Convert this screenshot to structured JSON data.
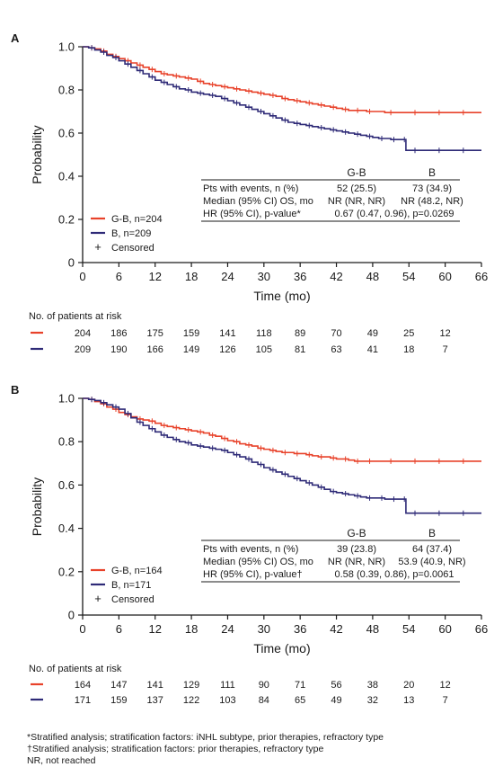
{
  "colors": {
    "gb": "#e8422a",
    "b": "#2e2a77",
    "axis": "#1a1a1a"
  },
  "chart_data": [
    {
      "panel_label": "A",
      "type": "line",
      "ylabel": "Probability",
      "xlabel": "Time (mo)",
      "xlim": [
        0,
        66
      ],
      "ylim": [
        0,
        1.0
      ],
      "x_ticks": [
        "0",
        "6",
        "12",
        "18",
        "24",
        "30",
        "36",
        "42",
        "48",
        "54",
        "60",
        "66"
      ],
      "y_ticks": [
        "0",
        "0.2",
        "0.4",
        "0.6",
        "0.8",
        "1.0"
      ],
      "legend": [
        {
          "label": "G-B, n=204",
          "series": "gb"
        },
        {
          "label": "B, n=209",
          "series": "b"
        },
        {
          "label": "Censored",
          "symbol": "+"
        }
      ],
      "series": [
        {
          "key": "gb",
          "name": "G-B, n=204",
          "x": [
            0,
            1,
            2,
            3,
            4,
            5,
            6,
            7,
            8,
            9,
            10,
            11,
            12,
            13,
            14,
            15,
            16,
            17,
            18,
            19,
            20,
            21,
            22,
            23,
            24,
            25,
            26,
            27,
            28,
            29,
            30,
            31,
            32,
            33,
            34,
            35,
            36,
            37,
            38,
            39,
            40,
            41,
            42,
            43,
            44,
            45,
            46,
            47,
            48,
            50,
            52,
            54,
            56,
            58,
            60,
            62,
            64,
            66
          ],
          "y": [
            1.0,
            0.995,
            0.99,
            0.98,
            0.965,
            0.955,
            0.945,
            0.935,
            0.925,
            0.915,
            0.905,
            0.895,
            0.885,
            0.875,
            0.87,
            0.865,
            0.86,
            0.855,
            0.85,
            0.84,
            0.83,
            0.825,
            0.82,
            0.815,
            0.81,
            0.805,
            0.8,
            0.795,
            0.79,
            0.785,
            0.78,
            0.775,
            0.77,
            0.76,
            0.755,
            0.75,
            0.745,
            0.74,
            0.735,
            0.73,
            0.725,
            0.72,
            0.715,
            0.71,
            0.705,
            0.705,
            0.705,
            0.7,
            0.7,
            0.695,
            0.695,
            0.695,
            0.695,
            0.695,
            0.695,
            0.695,
            0.695,
            0.695
          ]
        },
        {
          "key": "b",
          "name": "B, n=209",
          "x": [
            0,
            1,
            2,
            3,
            4,
            5,
            6,
            7,
            8,
            9,
            10,
            11,
            12,
            13,
            14,
            15,
            16,
            17,
            18,
            19,
            20,
            21,
            22,
            23,
            24,
            25,
            26,
            27,
            28,
            29,
            30,
            31,
            32,
            33,
            34,
            35,
            36,
            37,
            38,
            39,
            40,
            41,
            42,
            43,
            44,
            45,
            46,
            47,
            48,
            49,
            50,
            51,
            52,
            53,
            53.5,
            54,
            56,
            58,
            60,
            62,
            64,
            66
          ],
          "y": [
            1.0,
            0.995,
            0.985,
            0.975,
            0.96,
            0.95,
            0.935,
            0.92,
            0.905,
            0.89,
            0.875,
            0.86,
            0.845,
            0.835,
            0.825,
            0.815,
            0.805,
            0.8,
            0.79,
            0.785,
            0.78,
            0.775,
            0.77,
            0.76,
            0.75,
            0.74,
            0.73,
            0.72,
            0.71,
            0.7,
            0.69,
            0.68,
            0.67,
            0.66,
            0.65,
            0.645,
            0.64,
            0.635,
            0.63,
            0.625,
            0.62,
            0.615,
            0.61,
            0.605,
            0.6,
            0.595,
            0.59,
            0.585,
            0.58,
            0.575,
            0.575,
            0.57,
            0.57,
            0.57,
            0.52,
            0.52,
            0.52,
            0.52,
            0.52,
            0.52,
            0.52,
            0.52
          ]
        }
      ],
      "stats_table": {
        "columns": [
          "G-B",
          "B"
        ],
        "rows": [
          {
            "label": "Pts with events, n (%)",
            "gb": "52 (25.5)",
            "b": "73 (34.9)"
          },
          {
            "label": "Median (95% CI) OS, mo",
            "gb": "NR (NR, NR)",
            "b": "NR (48.2, NR)"
          },
          {
            "label": "HR (95% CI), p-value*",
            "merged": "0.67 (0.47, 0.96), p=0.0269"
          }
        ]
      },
      "risk_table": {
        "title": "No. of patients at risk",
        "x": [
          0,
          6,
          12,
          18,
          24,
          30,
          36,
          42,
          48,
          54,
          60
        ],
        "gb": [
          "204",
          "186",
          "175",
          "159",
          "141",
          "118",
          "89",
          "70",
          "49",
          "25",
          "12"
        ],
        "b": [
          "209",
          "190",
          "166",
          "149",
          "126",
          "105",
          "81",
          "63",
          "41",
          "18",
          "7"
        ]
      }
    },
    {
      "panel_label": "B",
      "type": "line",
      "ylabel": "Probability",
      "xlabel": "Time (mo)",
      "xlim": [
        0,
        66
      ],
      "ylim": [
        0,
        1.0
      ],
      "x_ticks": [
        "0",
        "6",
        "12",
        "18",
        "24",
        "30",
        "36",
        "42",
        "48",
        "54",
        "60",
        "66"
      ],
      "y_ticks": [
        "0",
        "0.2",
        "0.4",
        "0.6",
        "0.8",
        "1.0"
      ],
      "legend": [
        {
          "label": "G-B, n=164",
          "series": "gb"
        },
        {
          "label": "B, n=171",
          "series": "b"
        },
        {
          "label": "Censored",
          "symbol": "+"
        }
      ],
      "series": [
        {
          "key": "gb",
          "name": "G-B, n=164",
          "x": [
            0,
            1,
            2,
            3,
            4,
            5,
            6,
            7,
            8,
            9,
            10,
            11,
            12,
            13,
            14,
            15,
            16,
            17,
            18,
            19,
            20,
            21,
            22,
            23,
            24,
            25,
            26,
            27,
            28,
            29,
            30,
            31,
            32,
            33,
            34,
            35,
            36,
            37,
            38,
            39,
            40,
            41,
            42,
            43,
            44,
            45,
            46,
            47,
            48,
            50,
            52,
            54,
            56,
            58,
            60,
            62,
            64,
            66
          ],
          "y": [
            1.0,
            0.995,
            0.985,
            0.975,
            0.96,
            0.95,
            0.935,
            0.925,
            0.915,
            0.905,
            0.9,
            0.895,
            0.885,
            0.875,
            0.87,
            0.865,
            0.86,
            0.855,
            0.85,
            0.845,
            0.84,
            0.83,
            0.825,
            0.815,
            0.805,
            0.8,
            0.79,
            0.785,
            0.78,
            0.77,
            0.765,
            0.76,
            0.755,
            0.75,
            0.75,
            0.745,
            0.745,
            0.74,
            0.735,
            0.73,
            0.73,
            0.725,
            0.72,
            0.72,
            0.715,
            0.71,
            0.71,
            0.71,
            0.71,
            0.71,
            0.71,
            0.71,
            0.71,
            0.71,
            0.71,
            0.71,
            0.71,
            0.71
          ]
        },
        {
          "key": "b",
          "name": "B, n=171",
          "x": [
            0,
            1,
            2,
            3,
            4,
            5,
            6,
            7,
            8,
            9,
            10,
            11,
            12,
            13,
            14,
            15,
            16,
            17,
            18,
            19,
            20,
            21,
            22,
            23,
            24,
            25,
            26,
            27,
            28,
            29,
            30,
            31,
            32,
            33,
            34,
            35,
            36,
            37,
            38,
            39,
            40,
            41,
            42,
            43,
            44,
            45,
            46,
            47,
            48,
            49,
            50,
            51,
            52,
            53,
            53.5,
            54,
            56,
            58,
            60,
            62,
            64,
            66
          ],
          "y": [
            1.0,
            0.995,
            0.99,
            0.98,
            0.97,
            0.96,
            0.95,
            0.93,
            0.91,
            0.89,
            0.875,
            0.86,
            0.845,
            0.83,
            0.82,
            0.81,
            0.8,
            0.795,
            0.785,
            0.78,
            0.775,
            0.77,
            0.765,
            0.76,
            0.75,
            0.74,
            0.73,
            0.72,
            0.705,
            0.695,
            0.68,
            0.67,
            0.66,
            0.65,
            0.64,
            0.63,
            0.62,
            0.61,
            0.6,
            0.59,
            0.58,
            0.57,
            0.565,
            0.56,
            0.555,
            0.55,
            0.545,
            0.54,
            0.54,
            0.54,
            0.535,
            0.535,
            0.535,
            0.535,
            0.47,
            0.47,
            0.47,
            0.47,
            0.47,
            0.47,
            0.47,
            0.47
          ]
        }
      ],
      "stats_table": {
        "columns": [
          "G-B",
          "B"
        ],
        "rows": [
          {
            "label": "Pts with events, n (%)",
            "gb": "39 (23.8)",
            "b": "64 (37.4)"
          },
          {
            "label": "Median (95% CI) OS, mo",
            "gb": "NR (NR, NR)",
            "b": "53.9 (40.9, NR)"
          },
          {
            "label": "HR (95% CI), p-value†",
            "merged": "0.58 (0.39, 0.86), p=0.0061"
          }
        ]
      },
      "risk_table": {
        "title": "No. of patients at risk",
        "x": [
          0,
          6,
          12,
          18,
          24,
          30,
          36,
          42,
          48,
          54,
          60
        ],
        "gb": [
          "164",
          "147",
          "141",
          "129",
          "111",
          "90",
          "71",
          "56",
          "38",
          "20",
          "12"
        ],
        "b": [
          "171",
          "159",
          "137",
          "122",
          "103",
          "84",
          "65",
          "49",
          "32",
          "13",
          "7"
        ]
      }
    }
  ],
  "footnotes": [
    "*Stratified analysis; stratification factors: iNHL subtype, prior therapies, refractory type",
    "†Stratified analysis; stratification factors: prior therapies, refractory type",
    "NR, not reached"
  ]
}
